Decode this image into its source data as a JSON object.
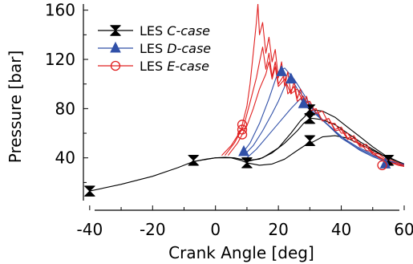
{
  "chart_data": {
    "type": "line",
    "title": "",
    "xlabel": "Crank Angle [deg]",
    "ylabel": "Pressure [bar]",
    "xlim": [
      -42,
      60
    ],
    "ylim": [
      2,
      165
    ],
    "x_ticks": [
      -40,
      -20,
      0,
      20,
      40,
      60
    ],
    "y_ticks": [
      40,
      80,
      120,
      160
    ],
    "grid": false,
    "legend_position": "top-left",
    "series": [
      {
        "name": "LES C-case",
        "legend_prefix": "LES ",
        "legend_italic": "C-case",
        "color": "#000000",
        "marker": "hourglass",
        "curves": [
          [
            [
              -40,
              13
            ],
            [
              -30,
              18.5
            ],
            [
              -20,
              25
            ],
            [
              -12,
              32
            ],
            [
              -7,
              37
            ],
            [
              -3,
              39
            ],
            [
              0,
              40
            ],
            [
              3,
              40.5
            ],
            [
              6,
              40
            ],
            [
              8,
              39
            ],
            [
              10,
              38
            ],
            [
              14,
              39
            ],
            [
              18,
              44
            ],
            [
              22,
              52
            ],
            [
              26,
              62
            ],
            [
              28,
              68
            ],
            [
              30,
              72
            ],
            [
              31,
              72
            ],
            [
              34,
              71
            ],
            [
              38,
              67
            ],
            [
              42,
              60
            ],
            [
              46,
              53
            ],
            [
              50,
              47
            ],
            [
              54,
              41
            ],
            [
              58,
              37
            ],
            [
              60,
              35
            ]
          ],
          [
            [
              -7,
              37
            ],
            [
              0,
              40
            ],
            [
              5,
              40
            ],
            [
              8,
              38
            ],
            [
              10,
              36
            ],
            [
              14,
              34
            ],
            [
              18,
              35
            ],
            [
              22,
              39
            ],
            [
              26,
              46
            ],
            [
              29,
              51
            ],
            [
              31,
              53
            ],
            [
              34,
              57
            ],
            [
              38,
              58
            ],
            [
              42,
              56
            ],
            [
              46,
              51
            ],
            [
              50,
              46
            ],
            [
              54,
              41
            ],
            [
              58,
              37
            ],
            [
              60,
              35
            ]
          ],
          [
            [
              10,
              37
            ],
            [
              15,
              40
            ],
            [
              20,
              48
            ],
            [
              24,
              60
            ],
            [
              27,
              70
            ],
            [
              29,
              75
            ],
            [
              31,
              79
            ],
            [
              34,
              78
            ],
            [
              38,
              73
            ],
            [
              42,
              65
            ],
            [
              46,
              57
            ],
            [
              50,
              49
            ],
            [
              54,
              42
            ],
            [
              58,
              37
            ],
            [
              60,
              34
            ]
          ]
        ],
        "markers": [
          [
            -40,
            13
          ],
          [
            -7,
            38
          ],
          [
            10,
            36
          ],
          [
            30,
            79
          ],
          [
            30,
            72
          ],
          [
            30,
            54
          ],
          [
            55,
            38
          ]
        ]
      },
      {
        "name": "LES D-case",
        "legend_prefix": "LES ",
        "legend_italic": "D-case",
        "color": "#3050a8",
        "marker": "triangle",
        "curves": [
          [
            [
              8,
              42
            ],
            [
              11,
              52
            ],
            [
              14,
              68
            ],
            [
              17,
              88
            ],
            [
              19,
              103
            ],
            [
              20,
              110
            ],
            [
              22,
              113
            ],
            [
              25,
              104
            ],
            [
              28,
              92
            ],
            [
              31,
              80
            ],
            [
              34,
              71
            ],
            [
              38,
              62
            ],
            [
              42,
              53
            ],
            [
              46,
              46
            ],
            [
              50,
              41
            ],
            [
              54,
              37
            ],
            [
              58,
              35
            ],
            [
              60,
              34
            ]
          ],
          [
            [
              9,
              42
            ],
            [
              12,
              50
            ],
            [
              15,
              62
            ],
            [
              18,
              76
            ],
            [
              20,
              86
            ],
            [
              22,
              98
            ],
            [
              24,
              105
            ],
            [
              26,
              96
            ],
            [
              29,
              86
            ],
            [
              32,
              76
            ],
            [
              36,
              66
            ],
            [
              40,
              56
            ],
            [
              45,
              48
            ],
            [
              50,
              42
            ],
            [
              54,
              38
            ],
            [
              58,
              35
            ],
            [
              60,
              34
            ]
          ],
          [
            [
              10,
              40
            ],
            [
              13,
              47
            ],
            [
              16,
              56
            ],
            [
              20,
              68
            ],
            [
              24,
              80
            ],
            [
              27,
              88
            ],
            [
              29,
              82
            ],
            [
              32,
              75
            ],
            [
              36,
              66
            ],
            [
              40,
              57
            ],
            [
              45,
              49
            ],
            [
              50,
              43
            ],
            [
              54,
              38
            ],
            [
              58,
              36
            ],
            [
              60,
              35
            ]
          ]
        ],
        "markers": [
          [
            9,
            45
          ],
          [
            21,
            110
          ],
          [
            24,
            104
          ],
          [
            28,
            84
          ],
          [
            54,
            35
          ]
        ]
      },
      {
        "name": "LES E-case",
        "legend_prefix": "LES ",
        "legend_italic": "E-case",
        "color": "#e02020",
        "marker": "circle",
        "curves": [
          [
            [
              2,
              42
            ],
            [
              5,
              50
            ],
            [
              8,
              62
            ],
            [
              10,
              82
            ],
            [
              11,
              100
            ],
            [
              12,
              125
            ],
            [
              13,
              150
            ],
            [
              13.5,
              165
            ],
            [
              14,
              140
            ],
            [
              15,
              150
            ],
            [
              16,
              125
            ],
            [
              17,
              138
            ],
            [
              18,
              118
            ],
            [
              19,
              128
            ],
            [
              20,
              105
            ],
            [
              21,
              118
            ],
            [
              22,
              98
            ],
            [
              23,
              110
            ],
            [
              24,
              92
            ],
            [
              25,
              102
            ],
            [
              26,
              88
            ],
            [
              27,
              96
            ],
            [
              28,
              83
            ],
            [
              29,
              90
            ],
            [
              30,
              78
            ],
            [
              32,
              80
            ],
            [
              34,
              70
            ],
            [
              36,
              72
            ],
            [
              38,
              63
            ],
            [
              40,
              65
            ],
            [
              42,
              56
            ],
            [
              44,
              58
            ],
            [
              46,
              50
            ],
            [
              48,
              51
            ],
            [
              50,
              44
            ],
            [
              52,
              43
            ],
            [
              54,
              39
            ],
            [
              56,
              38
            ],
            [
              58,
              36
            ],
            [
              60,
              34
            ]
          ],
          [
            [
              3,
              42
            ],
            [
              6,
              52
            ],
            [
              9,
              66
            ],
            [
              11,
              85
            ],
            [
              13,
              105
            ],
            [
              14,
              118
            ],
            [
              15,
              130
            ],
            [
              16,
              112
            ],
            [
              17,
              125
            ],
            [
              18,
              106
            ],
            [
              19,
              118
            ],
            [
              20,
              100
            ],
            [
              22,
              108
            ],
            [
              23,
              92
            ],
            [
              25,
              98
            ],
            [
              26,
              86
            ],
            [
              28,
              90
            ],
            [
              30,
              78
            ],
            [
              32,
              80
            ],
            [
              34,
              70
            ],
            [
              36,
              72
            ],
            [
              38,
              62
            ],
            [
              40,
              63
            ],
            [
              42,
              55
            ],
            [
              44,
              56
            ],
            [
              46,
              49
            ],
            [
              48,
              49
            ],
            [
              50,
              43
            ],
            [
              52,
              41
            ],
            [
              54,
              38
            ],
            [
              56,
              36
            ],
            [
              58,
              35
            ],
            [
              60,
              33
            ]
          ],
          [
            [
              4,
              42
            ],
            [
              7,
              52
            ],
            [
              10,
              66
            ],
            [
              12,
              80
            ],
            [
              14,
              96
            ],
            [
              16,
              108
            ],
            [
              17,
              118
            ],
            [
              18,
              104
            ],
            [
              19,
              114
            ],
            [
              20,
              98
            ],
            [
              22,
              104
            ],
            [
              24,
              92
            ],
            [
              26,
              96
            ],
            [
              28,
              84
            ],
            [
              30,
              86
            ],
            [
              32,
              76
            ],
            [
              34,
              78
            ],
            [
              36,
              68
            ],
            [
              38,
              68
            ],
            [
              40,
              60
            ],
            [
              42,
              60
            ],
            [
              44,
              53
            ],
            [
              46,
              52
            ],
            [
              48,
              46
            ],
            [
              50,
              45
            ],
            [
              52,
              40
            ],
            [
              54,
              38
            ],
            [
              56,
              36
            ],
            [
              58,
              34
            ],
            [
              60,
              33
            ]
          ]
        ],
        "markers": [
          [
            8.5,
            67
          ],
          [
            8.5,
            63
          ],
          [
            8.5,
            59
          ],
          [
            53,
            34
          ]
        ]
      }
    ]
  }
}
